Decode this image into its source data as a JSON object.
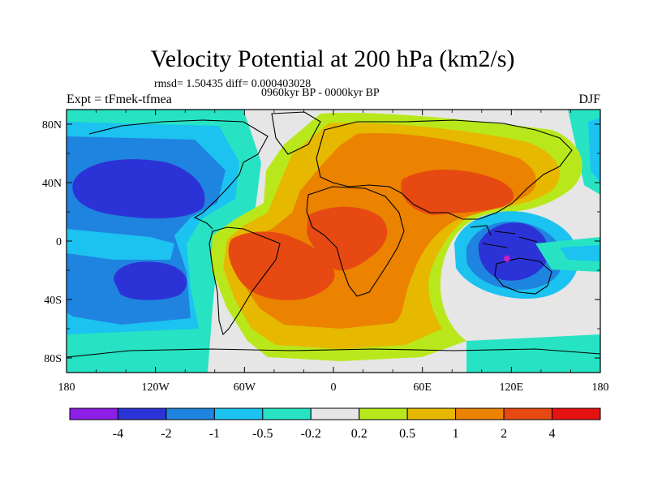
{
  "figure": {
    "title": "Velocity Potential at 200 hPa (km2/s)",
    "stats": "rmsd= 1.50435 diff= 0.000403028",
    "period": "0960kyr BP - 0000kyr BP",
    "experiment": "Expt = tFmek-tfmea",
    "season": "DJF"
  },
  "axes": {
    "x_ticks": [
      "180",
      "120W",
      "60W",
      "0",
      "60E",
      "120E",
      "180"
    ],
    "x_values": [
      -180,
      -120,
      -60,
      0,
      60,
      120,
      180
    ],
    "y_ticks": [
      "80N",
      "40N",
      "0",
      "40S",
      "80S"
    ],
    "y_values": [
      80,
      40,
      0,
      -40,
      -80
    ],
    "lon_range": [
      -180,
      180
    ],
    "lat_range": [
      -90,
      90
    ]
  },
  "colorbar": {
    "labels": [
      "-4",
      "-2",
      "-1",
      "-0.5",
      "-0.2",
      "0.2",
      "0.5",
      "1",
      "2",
      "4"
    ],
    "colors": [
      "#8c1ee6",
      "#2c33d6",
      "#1f84e0",
      "#1cc2f0",
      "#27e3c4",
      "#e6e6e6",
      "#b8e81c",
      "#e6b800",
      "#eb8200",
      "#e64a12",
      "#e61212"
    ]
  },
  "map_data": {
    "fields": [
      {
        "name": "background-near-zero",
        "level": "-0.2 to 0.2",
        "color": "#e6e6e6"
      },
      {
        "name": "east-pacific-high",
        "level": "-0.5 to -0.2",
        "color": "#27e3c4"
      },
      {
        "name": "east-pacific-mid",
        "level": "-1 to -0.5",
        "color": "#1cc2f0"
      },
      {
        "name": "east-pacific-core",
        "level": "-2 to -1",
        "color": "#1f84e0"
      },
      {
        "name": "north-pacific-min",
        "level": "-4 to -2",
        "color": "#2c33d6"
      },
      {
        "name": "south-pacific-min",
        "level": "-4 to -2",
        "color": "#2c33d6"
      },
      {
        "name": "atlantic-eurasia-outer",
        "level": "0.2 to 0.5",
        "color": "#b8e81c"
      },
      {
        "name": "atlantic-eurasia-mid",
        "level": "0.5 to 1",
        "color": "#e6b800"
      },
      {
        "name": "atlantic-eurasia-inner",
        "level": "1 to 2",
        "color": "#eb8200"
      },
      {
        "name": "south-atlantic-max",
        "level": "2 to 4",
        "color": "#e64a12"
      },
      {
        "name": "asia-max",
        "level": "2 to 4",
        "color": "#e64a12"
      },
      {
        "name": "maritime-continent-outer",
        "level": "-1 to -0.5",
        "color": "#1cc2f0"
      },
      {
        "name": "maritime-continent-mid",
        "level": "-2 to -1",
        "color": "#1f84e0"
      },
      {
        "name": "maritime-continent-min",
        "level": "-4 to -2",
        "color": "#2c33d6"
      }
    ],
    "marker": {
      "name": "minimum-marker",
      "lon": 117,
      "lat": -12,
      "color": "#c81ec8"
    }
  }
}
